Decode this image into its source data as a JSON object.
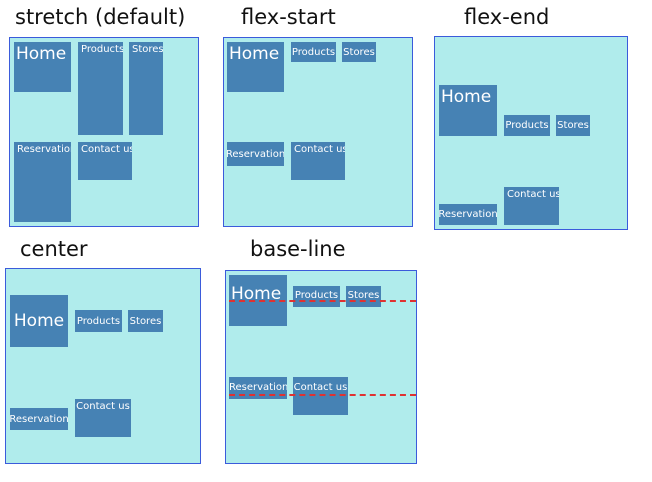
{
  "titles": {
    "stretch": "stretch (default)",
    "flex_start": "flex-start",
    "flex_end": "flex-end",
    "center": "center",
    "baseline": "base-line"
  },
  "items": {
    "home": "Home",
    "products": "Products",
    "stores": "Stores",
    "reservation": "Reservation",
    "contact": "Contact us"
  },
  "colors": {
    "panel_bg": "#b0ecec",
    "panel_border": "#3b5bdb",
    "item_bg": "#4682b4",
    "item_text": "#ffffff",
    "baseline_marker": "#e03131"
  }
}
